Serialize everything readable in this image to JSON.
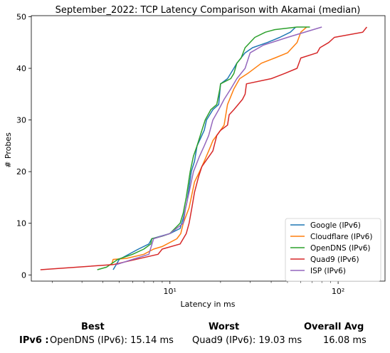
{
  "chart_data": {
    "type": "line",
    "title": "September_2022: TCP Latency Comparison with Akamai (median)",
    "xlabel": "Latency in ms",
    "ylabel": "# Probes",
    "xscale": "log",
    "xlim": [
      1.5,
      190
    ],
    "ylim": [
      -1.2,
      50.2
    ],
    "xticks": [
      10,
      100
    ],
    "xtick_labels": [
      "10¹",
      "10²"
    ],
    "yticks": [
      0,
      10,
      20,
      30,
      40,
      50
    ],
    "grid": false,
    "legend_position": "lower-right",
    "series": [
      {
        "name": "Google (IPv6)",
        "color": "#1f77b4",
        "points": [
          [
            4.6,
            1
          ],
          [
            5,
            3
          ],
          [
            6.5,
            5
          ],
          [
            7.5,
            6
          ],
          [
            7.8,
            7
          ],
          [
            10,
            8
          ],
          [
            11.5,
            9
          ],
          [
            12,
            11
          ],
          [
            12.6,
            14
          ],
          [
            13,
            17
          ],
          [
            13.4,
            20
          ],
          [
            14,
            22
          ],
          [
            14.5,
            25
          ],
          [
            16,
            28
          ],
          [
            16.5,
            30
          ],
          [
            18,
            32
          ],
          [
            19.5,
            33
          ],
          [
            20,
            37
          ],
          [
            22,
            38
          ],
          [
            24,
            40
          ],
          [
            25,
            41
          ],
          [
            28,
            43
          ],
          [
            31,
            44
          ],
          [
            38,
            45
          ],
          [
            45,
            46
          ],
          [
            52,
            47
          ],
          [
            56,
            48
          ]
        ]
      },
      {
        "name": "Cloudflare (IPv6)",
        "color": "#ff7f0e",
        "points": [
          [
            4.5,
            2
          ],
          [
            4.6,
            3
          ],
          [
            5.5,
            3.2
          ],
          [
            7,
            4
          ],
          [
            8,
            5
          ],
          [
            9,
            5.5
          ],
          [
            11,
            7
          ],
          [
            11.6,
            8
          ],
          [
            12,
            10
          ],
          [
            13,
            13
          ],
          [
            14,
            18
          ],
          [
            15,
            20
          ],
          [
            16,
            22
          ],
          [
            17,
            24
          ],
          [
            17.5,
            25
          ],
          [
            18,
            26
          ],
          [
            20,
            28
          ],
          [
            21,
            29
          ],
          [
            22,
            33
          ],
          [
            24,
            36
          ],
          [
            26,
            38
          ],
          [
            29,
            39
          ],
          [
            35,
            41
          ],
          [
            42,
            42
          ],
          [
            50,
            43
          ],
          [
            57,
            45
          ],
          [
            60,
            47
          ],
          [
            65,
            48
          ]
        ]
      },
      {
        "name": "OpenDNS (IPv6)",
        "color": "#2ca02c",
        "points": [
          [
            3.7,
            1
          ],
          [
            4.2,
            1.5
          ],
          [
            4.9,
            3
          ],
          [
            6,
            4
          ],
          [
            7,
            5
          ],
          [
            7.7,
            6
          ],
          [
            7.8,
            7
          ],
          [
            9,
            7.5
          ],
          [
            10,
            8
          ],
          [
            11.5,
            10
          ],
          [
            12,
            12
          ],
          [
            12.5,
            15
          ],
          [
            13.2,
            20
          ],
          [
            13.8,
            23
          ],
          [
            14.5,
            25
          ],
          [
            15.5,
            28
          ],
          [
            16.2,
            30
          ],
          [
            17.5,
            32
          ],
          [
            19,
            33
          ],
          [
            19.8,
            36
          ],
          [
            20,
            37
          ],
          [
            23,
            38
          ],
          [
            24,
            39
          ],
          [
            25,
            41
          ],
          [
            26.5,
            42
          ],
          [
            28,
            44
          ],
          [
            32,
            46
          ],
          [
            37,
            47
          ],
          [
            42,
            47.5
          ],
          [
            57,
            48
          ],
          [
            68,
            48
          ]
        ]
      },
      {
        "name": "Quad9 (IPv6)",
        "color": "#d62728",
        "points": [
          [
            1.7,
            1
          ],
          [
            4.6,
            2
          ],
          [
            8.5,
            4
          ],
          [
            9,
            5
          ],
          [
            11.5,
            6
          ],
          [
            12.5,
            8
          ],
          [
            13,
            10
          ],
          [
            13.5,
            13
          ],
          [
            14,
            16
          ],
          [
            14.8,
            19
          ],
          [
            15.5,
            21
          ],
          [
            18,
            24
          ],
          [
            19,
            27
          ],
          [
            20,
            28
          ],
          [
            22,
            29
          ],
          [
            22.5,
            31
          ],
          [
            24,
            32
          ],
          [
            27,
            34
          ],
          [
            28,
            35
          ],
          [
            28.5,
            37
          ],
          [
            40,
            38
          ],
          [
            48,
            39
          ],
          [
            57,
            40
          ],
          [
            60,
            42
          ],
          [
            75,
            43
          ],
          [
            78,
            44
          ],
          [
            88,
            45
          ],
          [
            95,
            46
          ],
          [
            140,
            47
          ],
          [
            148,
            48
          ]
        ]
      },
      {
        "name": "ISP (IPv6)",
        "color": "#9467bd",
        "points": [
          [
            4.8,
            2
          ],
          [
            6,
            3
          ],
          [
            7.5,
            4
          ],
          [
            8,
            7
          ],
          [
            10,
            8
          ],
          [
            12,
            10
          ],
          [
            12.4,
            13
          ],
          [
            13,
            16
          ],
          [
            13.8,
            20
          ],
          [
            15,
            23
          ],
          [
            16,
            25
          ],
          [
            17,
            27
          ],
          [
            18,
            30
          ],
          [
            19.5,
            32
          ],
          [
            21,
            34
          ],
          [
            23,
            36
          ],
          [
            25,
            38
          ],
          [
            28,
            40
          ],
          [
            30,
            43
          ],
          [
            36,
            44.5
          ],
          [
            50,
            46
          ],
          [
            80,
            48
          ]
        ]
      }
    ]
  },
  "summary": {
    "best_header": "Best",
    "worst_header": "Worst",
    "avg_header": "Overall Avg",
    "row_label": "IPv6 :",
    "best_value": "OpenDNS (IPv6): 15.14 ms",
    "worst_value": "Quad9 (IPv6): 19.03 ms",
    "avg_value": "16.08 ms"
  }
}
